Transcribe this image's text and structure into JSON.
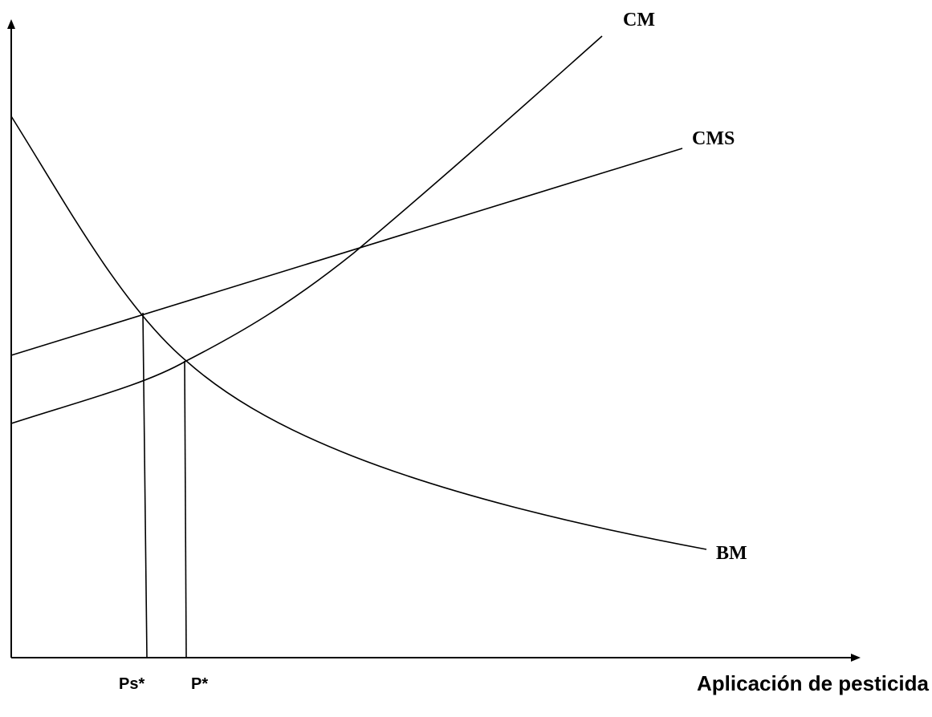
{
  "curve_labels": {
    "cm": "CM",
    "cms": "CMS",
    "bm": "BM"
  },
  "x_markers": [
    "Ps*",
    "P*"
  ],
  "x_axis_label": "Aplicación de pesticida"
}
